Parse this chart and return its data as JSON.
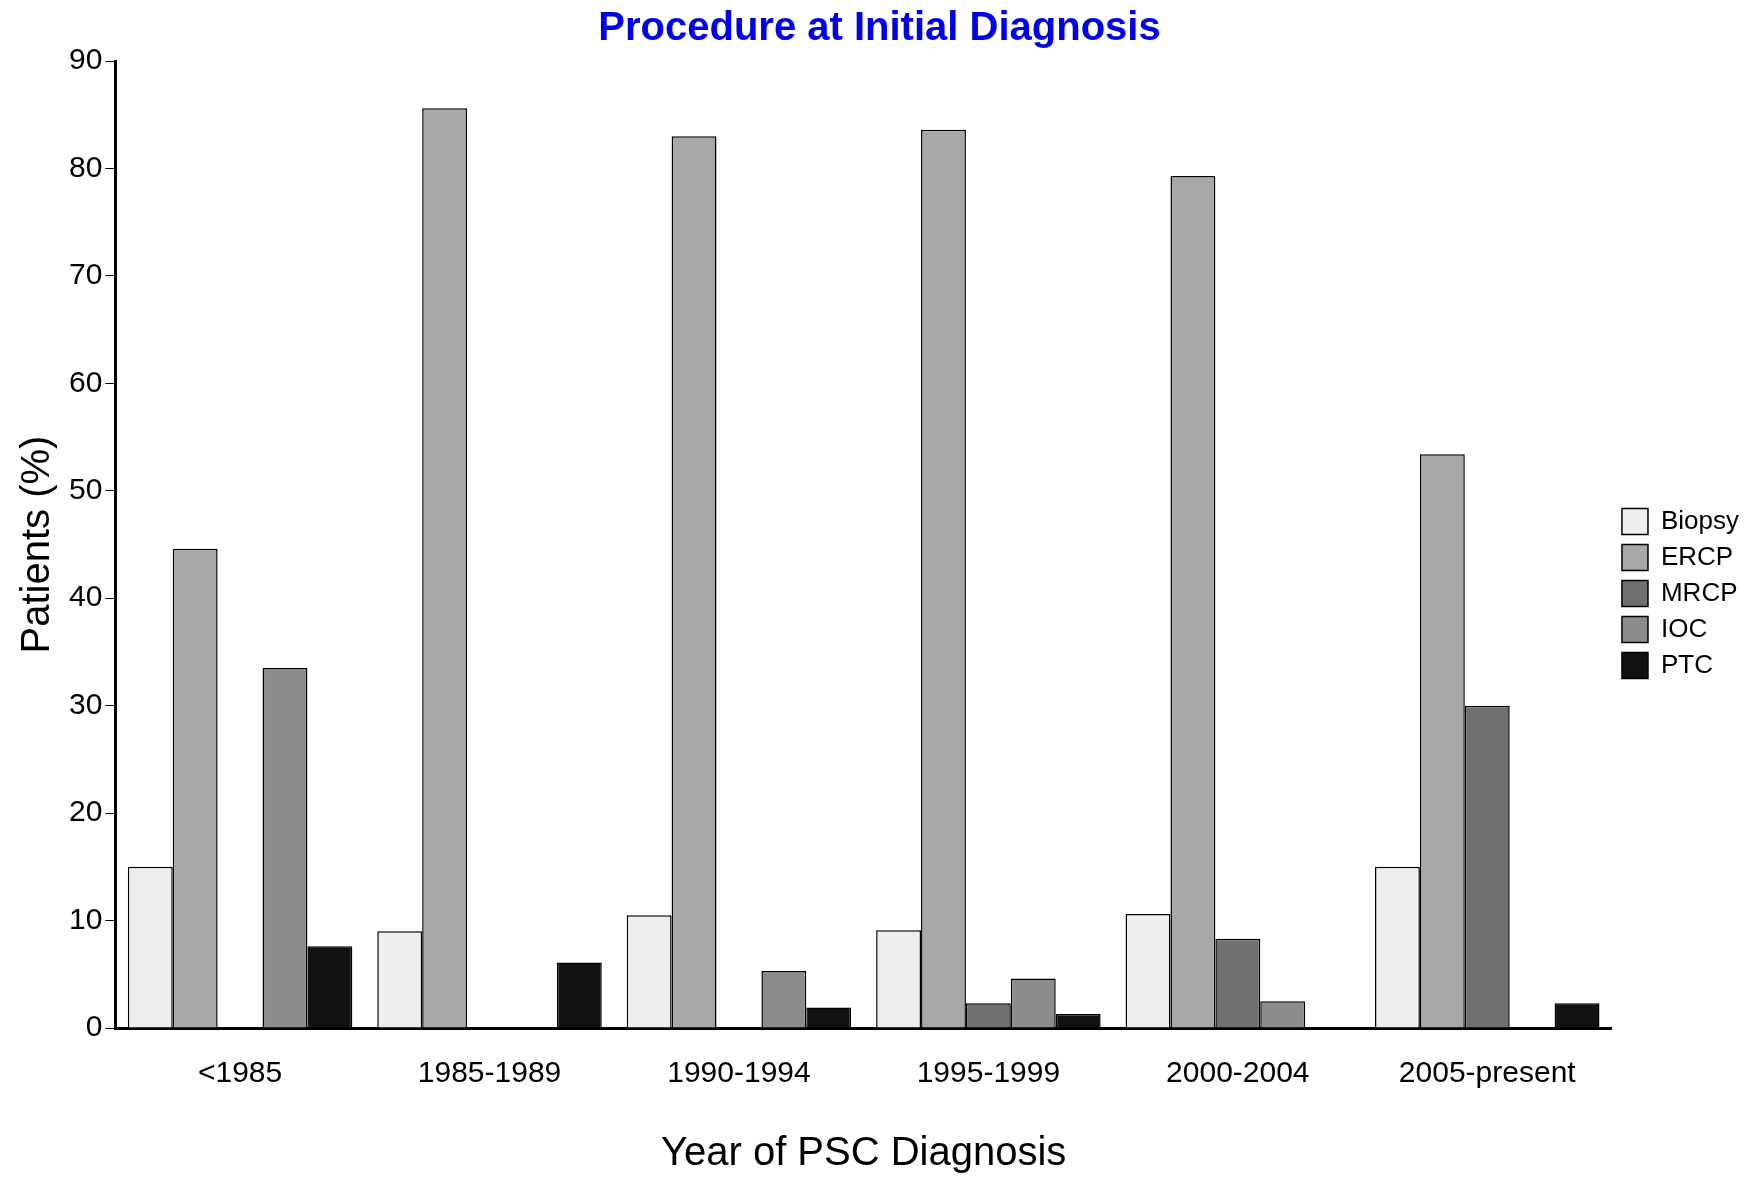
{
  "chart_data": {
    "type": "bar",
    "title": "Procedure at Initial Diagnosis",
    "xlabel": "Year of PSC Diagnosis",
    "ylabel": "Patients (%)",
    "categories": [
      "<1985",
      "1985-1989",
      "1990-1994",
      "1995-1999",
      "2000-2004",
      "2005-present"
    ],
    "series": [
      {
        "name": "Biopsy",
        "color": "#eeeeee",
        "values": [
          15.0,
          9.0,
          10.5,
          9.1,
          10.6,
          15.0
        ]
      },
      {
        "name": "ERCP",
        "color": "#a8a8a8",
        "values": [
          44.6,
          85.6,
          83.0,
          83.6,
          79.3,
          53.4
        ]
      },
      {
        "name": "MRCP",
        "color": "#707070",
        "values": [
          0,
          0,
          0,
          2.3,
          8.3,
          30.0
        ]
      },
      {
        "name": "IOC",
        "color": "#8c8c8c",
        "values": [
          33.5,
          0,
          5.3,
          4.6,
          2.5,
          0
        ]
      },
      {
        "name": "PTC",
        "color": "#111111",
        "values": [
          7.6,
          6.1,
          1.9,
          1.3,
          0,
          2.3
        ]
      }
    ],
    "ylim": [
      0,
      90
    ],
    "yticks": [
      0,
      10,
      20,
      30,
      40,
      50,
      60,
      70,
      80,
      90
    ],
    "grid": false,
    "legend": "right"
  }
}
